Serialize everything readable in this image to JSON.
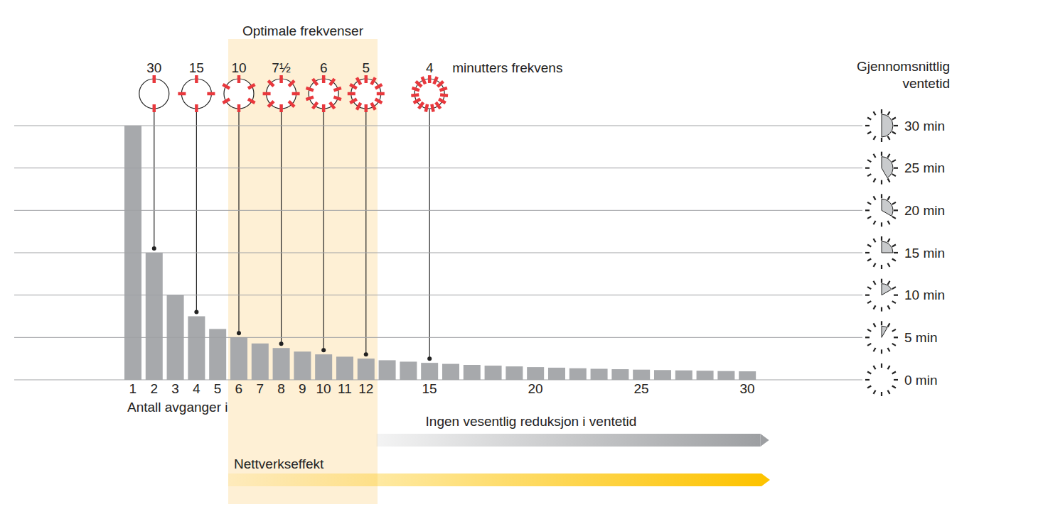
{
  "chart_data": {
    "type": "bar",
    "categories": [
      "1",
      "2",
      "3",
      "4",
      "5",
      "6",
      "7",
      "8",
      "9",
      "10",
      "11",
      "12",
      null,
      null,
      "15",
      null,
      null,
      null,
      null,
      "20",
      null,
      null,
      null,
      null,
      "25",
      null,
      null,
      null,
      null,
      "30"
    ],
    "values": [
      30,
      15,
      10,
      7.5,
      6,
      5,
      4.29,
      3.75,
      3.33,
      3,
      2.73,
      2.5,
      2.31,
      2.14,
      2,
      1.88,
      1.76,
      1.67,
      1.58,
      1.5,
      1.43,
      1.36,
      1.3,
      1.25,
      1.2,
      1.15,
      1.11,
      1.07,
      1.03,
      1
    ],
    "color": "#a7a9ac",
    "ylim": [
      0,
      30
    ],
    "yticks": [
      {
        "value": 0,
        "label": "0 min"
      },
      {
        "value": 5,
        "label": "5 min"
      },
      {
        "value": 10,
        "label": "10 min"
      },
      {
        "value": 15,
        "label": "15 min"
      },
      {
        "value": 20,
        "label": "20 min"
      },
      {
        "value": 25,
        "label": "25 min"
      },
      {
        "value": 30,
        "label": "30 min"
      }
    ],
    "grid": true,
    "x_label": "Antall avganger i timen",
    "y_label": "Gjennomsnittlig ventetid",
    "highlight": {
      "label": "Optimale frekvenser",
      "from": 6,
      "to": 12,
      "color": "#fef0d5"
    },
    "markers": [
      {
        "label": "30",
        "departures": 2
      },
      {
        "label": "15",
        "departures": 4
      },
      {
        "label": "10",
        "departures": 6
      },
      {
        "label": "7½",
        "departures": 8
      },
      {
        "label": "6",
        "departures": 10
      },
      {
        "label": "5",
        "departures": 12
      },
      {
        "label": "4",
        "departures": 15
      }
    ],
    "markers_label": "minutters frekvens",
    "marker_color": "#e8383d",
    "arrows": [
      {
        "label": "Ingen vesentlig reduksjon i ventetid",
        "from": 13,
        "to": 30,
        "color": "#9d9fa2"
      },
      {
        "label": "Nettverkseffekt",
        "from": 6,
        "to": 30,
        "color": "#fdc300"
      }
    ]
  }
}
